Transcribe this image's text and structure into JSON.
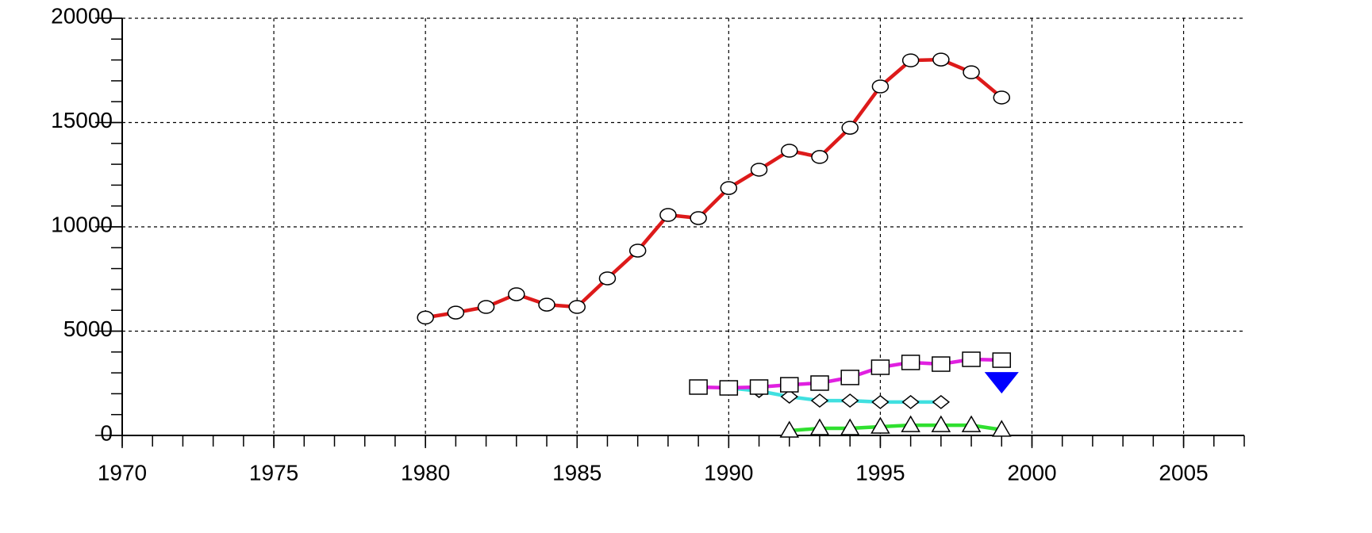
{
  "chart_data": {
    "type": "line",
    "xlim": [
      1970,
      2007
    ],
    "xticks": [
      1970,
      1975,
      1980,
      1985,
      1990,
      1995,
      2000,
      2005
    ],
    "ylim": [
      0,
      20000
    ],
    "yticks": [
      0,
      5000,
      10000,
      15000,
      20000
    ],
    "minor_ticks": {
      "x": 1,
      "y": 1000
    },
    "grid": true,
    "series": [
      {
        "color": "#dd1a1a",
        "marker": "circle",
        "x": [
          1980,
          1981,
          1982,
          1983,
          1984,
          1985,
          1986,
          1987,
          1988,
          1989,
          1990,
          1991,
          1992,
          1993,
          1994,
          1995,
          1996,
          1997,
          1998,
          1999
        ],
        "values": [
          5650,
          5890,
          6160,
          6770,
          6270,
          6160,
          7530,
          8860,
          10570,
          10420,
          11860,
          12740,
          13650,
          13350,
          14750,
          16730,
          17980,
          18020,
          17410,
          16200
        ]
      },
      {
        "color": "#e020e0",
        "marker": "square",
        "x": [
          1989,
          1990,
          1991,
          1992,
          1993,
          1994,
          1995,
          1996,
          1997,
          1998,
          1999
        ],
        "values": [
          2320,
          2280,
          2320,
          2430,
          2510,
          2780,
          3270,
          3500,
          3420,
          3650,
          3610
        ]
      },
      {
        "color": "#40e0e0",
        "marker": "diamond",
        "x": [
          1990,
          1991,
          1992,
          1993,
          1994,
          1995,
          1996,
          1997
        ],
        "values": [
          2280,
          2130,
          1860,
          1670,
          1670,
          1600,
          1600,
          1600
        ]
      },
      {
        "color": "#30e030",
        "marker": "triangle-up",
        "x": [
          1992,
          1993,
          1994,
          1995,
          1996,
          1997,
          1998,
          1999
        ],
        "values": [
          230,
          340,
          340,
          420,
          490,
          490,
          490,
          270
        ]
      },
      {
        "color": "#0000ff",
        "marker": "triangle-down",
        "x": [
          1999
        ],
        "values": [
          2550
        ]
      }
    ]
  }
}
